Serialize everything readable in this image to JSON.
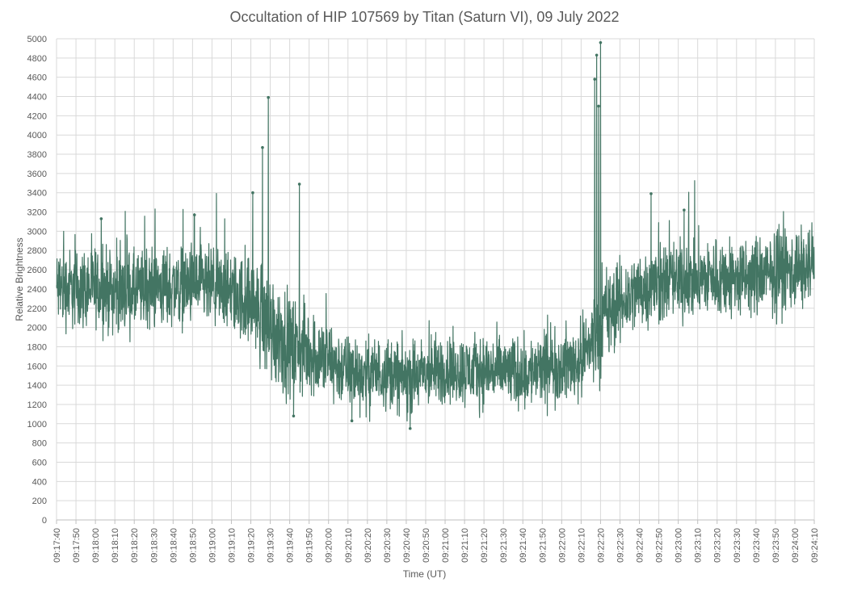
{
  "chart_data": {
    "type": "line",
    "title": "Occultation of HIP 107569 by Titan (Saturn VI), 09 July 2022",
    "xlabel": "Time (UT)",
    "ylabel": "Relative Brightness",
    "ylim": [
      0,
      5000
    ],
    "y_ticks": [
      "0",
      "200",
      "400",
      "600",
      "800",
      "1000",
      "1200",
      "1400",
      "1600",
      "1800",
      "2000",
      "2200",
      "2400",
      "2600",
      "2800",
      "3000",
      "3200",
      "3400",
      "3600",
      "3800",
      "4000",
      "4200",
      "4400",
      "4600",
      "4800",
      "5000"
    ],
    "x_ticks": [
      "09:17:40",
      "09:17:50",
      "09:18:00",
      "09:18:10",
      "09:18:20",
      "09:18:30",
      "09:18:40",
      "09:18:50",
      "09:19:00",
      "09:19:10",
      "09:19:20",
      "09:19:30",
      "09:19:40",
      "09:19:50",
      "09:20:00",
      "09:20:10",
      "09:20:20",
      "09:20:30",
      "09:20:40",
      "09:20:50",
      "09:21:00",
      "09:21:10",
      "09:21:20",
      "09:21:30",
      "09:21:40",
      "09:21:50",
      "09:22:00",
      "09:22:10",
      "09:22:20",
      "09:22:30",
      "09:22:40",
      "09:22:50",
      "09:23:00",
      "09:23:10",
      "09:23:20",
      "09:23:30",
      "09:23:40",
      "09:23:50",
      "09:24:00",
      "09:24:10"
    ],
    "xlim": [
      "09:17:40",
      "09:24:10"
    ],
    "grid": true,
    "legend": "none",
    "series_color": "#437563",
    "series": [
      {
        "x": [
          "09:17:40",
          "09:17:50",
          "09:18:00",
          "09:18:10",
          "09:18:20",
          "09:18:30",
          "09:18:40",
          "09:18:50",
          "09:19:00",
          "09:19:10",
          "09:19:20",
          "09:19:30",
          "09:19:40",
          "09:19:50",
          "09:20:00",
          "09:20:10",
          "09:20:20",
          "09:20:30",
          "09:20:40",
          "09:20:50",
          "09:21:00",
          "09:21:10",
          "09:21:20",
          "09:21:30",
          "09:21:40",
          "09:21:50",
          "09:22:00",
          "09:22:10",
          "09:22:20",
          "09:22:30",
          "09:22:40",
          "09:22:50",
          "09:23:00",
          "09:23:10",
          "09:23:20",
          "09:23:30",
          "09:23:40",
          "09:23:50",
          "09:24:00",
          "09:24:10"
        ],
        "values": [
          2400,
          2400,
          2420,
          2380,
          2360,
          2420,
          2430,
          2440,
          2400,
          2350,
          2250,
          2000,
          1800,
          1750,
          1650,
          1550,
          1500,
          1550,
          1450,
          1520,
          1560,
          1550,
          1560,
          1540,
          1520,
          1560,
          1600,
          1650,
          2050,
          2250,
          2400,
          2450,
          2480,
          2500,
          2520,
          2500,
          2520,
          2560,
          2600,
          2620
        ],
        "band": [
          450,
          450,
          450,
          450,
          450,
          450,
          450,
          450,
          450,
          450,
          500,
          650,
          550,
          500,
          450,
          400,
          400,
          400,
          400,
          400,
          400,
          400,
          400,
          400,
          400,
          400,
          400,
          450,
          600,
          450,
          450,
          450,
          450,
          450,
          450,
          450,
          450,
          450,
          450,
          450
        ],
        "peaks": [
          {
            "x": "09:19:29",
            "y": 4390
          },
          {
            "x": "09:19:26",
            "y": 3870
          },
          {
            "x": "09:19:21",
            "y": 3400
          },
          {
            "x": "09:19:45",
            "y": 3490
          },
          {
            "x": "09:22:18",
            "y": 4830
          },
          {
            "x": "09:22:20",
            "y": 4960
          },
          {
            "x": "09:22:19",
            "y": 4300
          },
          {
            "x": "09:22:17",
            "y": 4580
          },
          {
            "x": "09:22:46",
            "y": 3390
          },
          {
            "x": "09:18:03",
            "y": 3130
          },
          {
            "x": "09:18:51",
            "y": 3170
          },
          {
            "x": "09:23:03",
            "y": 3220
          },
          {
            "x": "09:20:42",
            "y": 950
          },
          {
            "x": "09:19:42",
            "y": 1080
          },
          {
            "x": "09:20:12",
            "y": 1030
          }
        ]
      }
    ]
  }
}
